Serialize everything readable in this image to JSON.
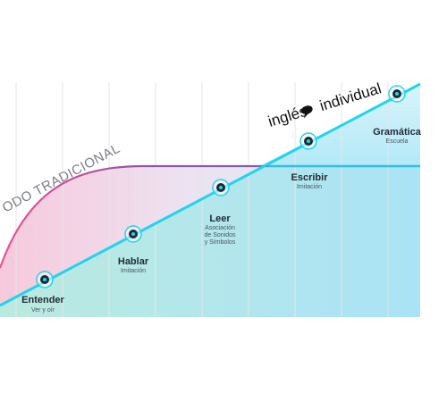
{
  "traditional_label": "ODO TRADICIONAL",
  "brand": {
    "part1": "inglés",
    "part2": "individual"
  },
  "colors": {
    "line": "#22d3ee",
    "traditional_curve": "#8a5aa8",
    "text": "#1f2a36"
  },
  "stages": [
    {
      "title": "Entender",
      "subtitle": [
        "Ver y oír"
      ]
    },
    {
      "title": "Hablar",
      "subtitle": [
        "Imitación"
      ]
    },
    {
      "title": "Leer",
      "subtitle": [
        "Asociación",
        "de Sonidos",
        "y Símbolos"
      ]
    },
    {
      "title": "Escribir",
      "subtitle": [
        "Imitación"
      ]
    },
    {
      "title": "Gramática",
      "subtitle": [
        "Escuela"
      ]
    }
  ]
}
